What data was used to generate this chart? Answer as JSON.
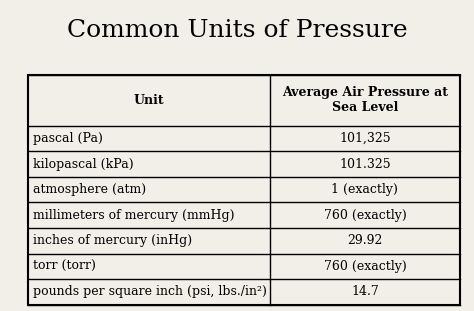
{
  "title": "Common Units of Pressure",
  "title_fontsize": 18,
  "title_font": "serif",
  "background_color": "#f2efe9",
  "header": [
    "Unit",
    "Average Air Pressure at\nSea Level"
  ],
  "rows": [
    [
      "pascal (Pa)",
      "101,325"
    ],
    [
      "kilopascal (kPa)",
      "101.325"
    ],
    [
      "atmosphere (atm)",
      "1 (exactly)"
    ],
    [
      "millimeters of mercury (mmHg)",
      "760 (exactly)"
    ],
    [
      "inches of mercury (inHg)",
      "29.92"
    ],
    [
      "torr (torr)",
      "760 (exactly)"
    ],
    [
      "pounds per square inch (psi, lbs./in²)",
      "14.7"
    ]
  ],
  "header_fontsize": 9,
  "cell_fontsize": 9,
  "col_split": 0.56
}
